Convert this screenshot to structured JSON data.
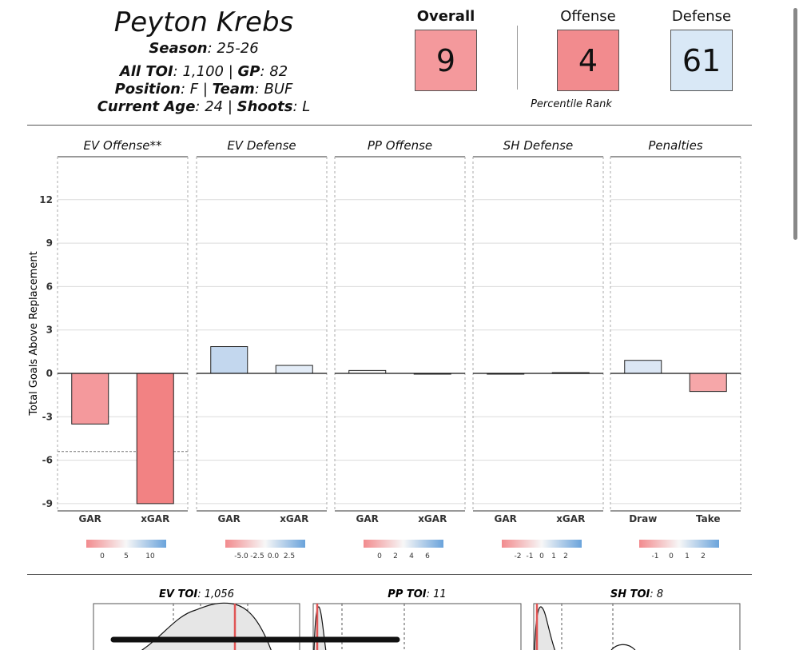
{
  "header": {
    "player_name": "Peyton Krebs",
    "season_label": "Season",
    "season_value": ": 25-26",
    "toi_label": "All TOI",
    "toi_value": ": 1,100 | ",
    "gp_label": "GP",
    "gp_value": ": 82",
    "position_label": "Position",
    "position_value": ": F | ",
    "team_label": "Team",
    "team_value": ": BUF",
    "age_label": "Current Age",
    "age_value": ": 24 | ",
    "shoots_label": "Shoots",
    "shoots_value": ": L"
  },
  "ranks": {
    "overall": {
      "label": "Overall",
      "value": "9",
      "color": "#f4999c"
    },
    "offense": {
      "label": "Offense",
      "value": "4",
      "color": "#f28b8e"
    },
    "defense": {
      "label": "Defense",
      "value": "61",
      "color": "#d9e8f6"
    },
    "note": "Percentile Rank"
  },
  "chart_data": {
    "type": "bar",
    "ylabel": "Total Goals Above Replacement",
    "ylim": [
      -9.5,
      15
    ],
    "yticks": [
      -9,
      -6,
      -3,
      0,
      3,
      6,
      9,
      12
    ],
    "replacement_line": -5.4,
    "panels": [
      {
        "title": "EV Offense**",
        "categories": [
          "GAR",
          "xGAR"
        ],
        "values": [
          -3.5,
          -9.0
        ],
        "colors": [
          "#f4999c",
          "#f28283"
        ],
        "legend": {
          "ticks": [
            "0",
            "5",
            "10"
          ]
        }
      },
      {
        "title": "EV Defense",
        "categories": [
          "GAR",
          "xGAR"
        ],
        "values": [
          1.85,
          0.55
        ],
        "colors": [
          "#c3d7ee",
          "#e3ecf7"
        ],
        "legend": {
          "ticks": [
            "-5.0",
            "-2.5",
            "0.0",
            "2.5"
          ]
        }
      },
      {
        "title": "PP Offense",
        "categories": [
          "GAR",
          "xGAR"
        ],
        "values": [
          0.2,
          0.0
        ],
        "colors": [
          "#f7f7f7",
          "#f7f7f7"
        ],
        "legend": {
          "ticks": [
            "0",
            "2",
            "4",
            "6"
          ]
        }
      },
      {
        "title": "SH Defense",
        "categories": [
          "GAR",
          "xGAR"
        ],
        "values": [
          0.0,
          0.05
        ],
        "colors": [
          "#f7f7f7",
          "#f7f7f7"
        ],
        "legend": {
          "ticks": [
            "-2",
            "-1",
            "0",
            "1",
            "2"
          ]
        }
      },
      {
        "title": "Penalties",
        "categories": [
          "Draw",
          "Take"
        ],
        "values": [
          0.9,
          -1.25
        ],
        "colors": [
          "#dbe6f4",
          "#f6a7a9"
        ],
        "legend": {
          "ticks": [
            "-1",
            "0",
            "1",
            "2"
          ]
        }
      }
    ]
  },
  "toi_panels": [
    {
      "label": "EV TOI",
      "value": ": 1,056"
    },
    {
      "label": "PP TOI",
      "value": ": 11"
    },
    {
      "label": "SH TOI",
      "value": ": 8"
    }
  ],
  "colors": {
    "negative": "#f28b8e",
    "positive": "#6aa3db",
    "neutral": "#f7f7f7"
  }
}
